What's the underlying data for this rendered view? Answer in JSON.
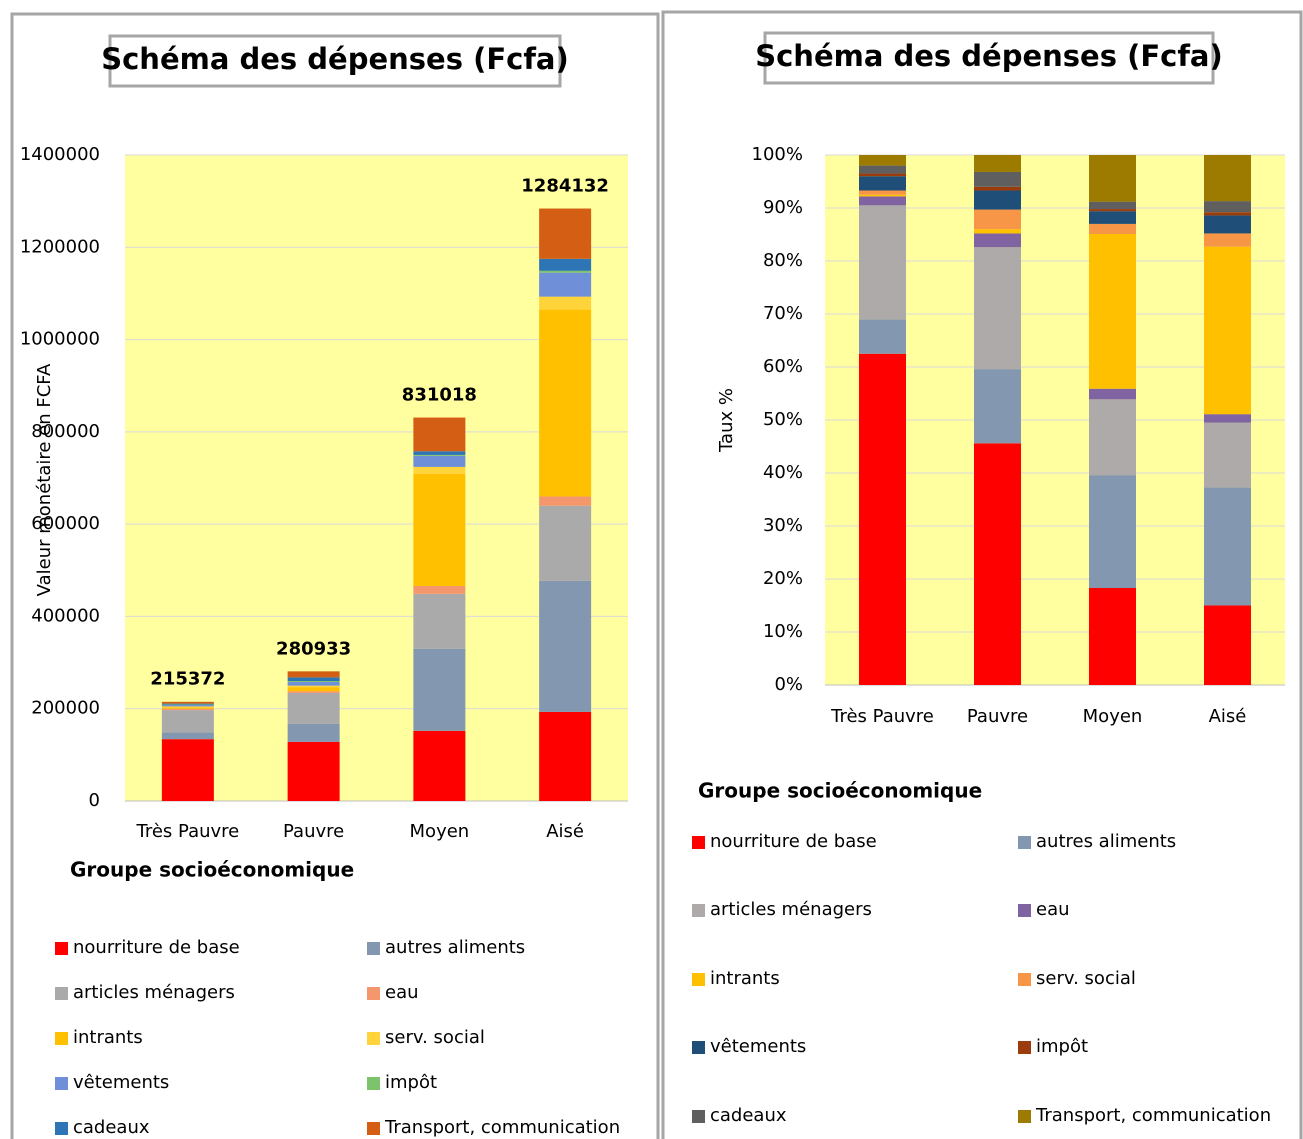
{
  "chart_data": [
    {
      "type": "bar",
      "stacked": true,
      "title": "Schéma des dépenses (Fcfa)",
      "y_label": "Valeur monétaire en FCFA",
      "x_label": "Groupe socioéconomique",
      "categories": [
        "Très Pauvre",
        "Pauvre",
        "Moyen",
        "Aisé"
      ],
      "totals": [
        215372,
        280933,
        831018,
        1284132
      ],
      "ylim": [
        0,
        1400000
      ],
      "yticks": [
        0,
        200000,
        400000,
        600000,
        800000,
        1000000,
        1200000,
        1400000
      ],
      "grid": true,
      "series": [
        {
          "name": "nourriture de base",
          "color": "#ff0000",
          "values": [
            134000,
            128000,
            152000,
            193000
          ]
        },
        {
          "name": "autres aliments",
          "color": "#8497b0",
          "values": [
            15000,
            39000,
            178000,
            284000
          ]
        },
        {
          "name": "articles ménagers",
          "color": "#aaaaaa",
          "values": [
            48000,
            67000,
            119000,
            163000
          ]
        },
        {
          "name": "eau",
          "color": "#f4976c",
          "values": [
            3000,
            4000,
            17000,
            20000
          ]
        },
        {
          "name": "intrants",
          "color": "#ffc000",
          "values": [
            3000,
            8000,
            243000,
            405000
          ]
        },
        {
          "name": "serv. social",
          "color": "#ffd43b",
          "values": [
            2000,
            4000,
            15000,
            28000
          ]
        },
        {
          "name": "vêtements",
          "color": "#6f8fd9",
          "values": [
            3000,
            8000,
            24000,
            52000
          ]
        },
        {
          "name": "impôt",
          "color": "#7dc36b",
          "values": [
            1000,
            2000,
            2000,
            4000
          ]
        },
        {
          "name": "cadeaux",
          "color": "#2e75b6",
          "values": [
            2000,
            8000,
            8000,
            26000
          ]
        },
        {
          "name": "Transport, communication",
          "color": "#d45f14",
          "values": [
            4000,
            13000,
            73000,
            109000
          ]
        }
      ]
    },
    {
      "type": "bar",
      "stacked": true,
      "title": "Schéma des dépenses (Fcfa)",
      "y_label": "Taux %",
      "x_label": "Groupe socioéconomique",
      "categories": [
        "Très Pauvre",
        "Pauvre",
        "Moyen",
        "Aisé"
      ],
      "ylim": [
        0,
        100
      ],
      "yticks": [
        {
          "value": 0,
          "label": "0%"
        },
        {
          "value": 10,
          "label": "10%"
        },
        {
          "value": 20,
          "label": "20%"
        },
        {
          "value": 30,
          "label": "30%"
        },
        {
          "value": 40,
          "label": "40%"
        },
        {
          "value": 50,
          "label": "50%"
        },
        {
          "value": 60,
          "label": "60%"
        },
        {
          "value": 70,
          "label": "70%"
        },
        {
          "value": 80,
          "label": "80%"
        },
        {
          "value": 90,
          "label": "90%"
        },
        {
          "value": 100,
          "label": "100%"
        }
      ],
      "grid": true,
      "series": [
        {
          "name": "nourriture de base",
          "color": "#ff0000",
          "values": [
            62.5,
            45.6,
            18.3,
            15
          ]
        },
        {
          "name": "autres aliments",
          "color": "#8497b0",
          "values": [
            6.5,
            14,
            21.3,
            22.3
          ]
        },
        {
          "name": "articles ménagers",
          "color": "#aeaaaa",
          "values": [
            21.5,
            23,
            14.3,
            12.2
          ]
        },
        {
          "name": "eau",
          "color": "#8064a2",
          "values": [
            1.7,
            2.6,
            2,
            1.6
          ]
        },
        {
          "name": "intrants",
          "color": "#ffc000",
          "values": [
            0.3,
            0.8,
            29.2,
            31.6
          ]
        },
        {
          "name": "serv. social",
          "color": "#f79646",
          "values": [
            0.8,
            3.7,
            1.9,
            2.5
          ]
        },
        {
          "name": "vêtements",
          "color": "#1f4e79",
          "values": [
            2.7,
            3.6,
            2.4,
            3.4
          ]
        },
        {
          "name": "impôt",
          "color": "#9c3c0c",
          "values": [
            0.5,
            0.7,
            0.4,
            0.6
          ]
        },
        {
          "name": "cadeaux",
          "color": "#5f5f5f",
          "values": [
            1.5,
            2.8,
            1.4,
            2.1
          ]
        },
        {
          "name": "Transport, communication",
          "color": "#9c7b00",
          "values": [
            2,
            3.2,
            8.8,
            8.7
          ]
        }
      ]
    }
  ]
}
